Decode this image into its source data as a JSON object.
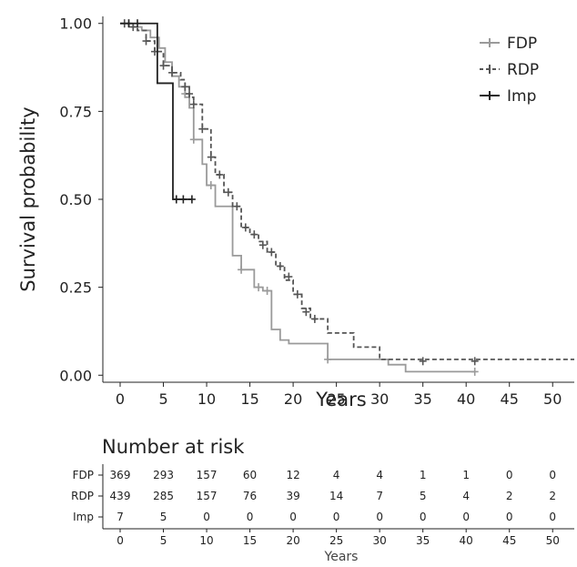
{
  "chart_data": {
    "type": "line",
    "subtype": "kaplan-meier step survival curves",
    "xlabel": "Years",
    "ylabel": "Survival probability",
    "xlim": [
      -2,
      52.5
    ],
    "ylim": [
      -0.02,
      1.02
    ],
    "x_ticks": [
      0,
      5,
      10,
      15,
      20,
      25,
      30,
      35,
      40,
      45,
      50
    ],
    "y_ticks": [
      0.0,
      0.25,
      0.5,
      0.75,
      1.0
    ],
    "y_tick_labels": [
      "0.00",
      "0.25",
      "0.50",
      "0.75",
      "1.00"
    ],
    "grid": false,
    "legend_position": "top-right",
    "series": [
      {
        "name": "FDP",
        "color": "#9a9a9a",
        "dash": "solid",
        "steps": [
          [
            0,
            1.0
          ],
          [
            1.5,
            0.99
          ],
          [
            2.5,
            0.98
          ],
          [
            3.5,
            0.96
          ],
          [
            4.5,
            0.93
          ],
          [
            5.2,
            0.89
          ],
          [
            6.0,
            0.85
          ],
          [
            6.8,
            0.82
          ],
          [
            7.5,
            0.79
          ],
          [
            8.0,
            0.76
          ],
          [
            8.5,
            0.67
          ],
          [
            9.5,
            0.6
          ],
          [
            10.0,
            0.54
          ],
          [
            11.0,
            0.48
          ],
          [
            13.0,
            0.34
          ],
          [
            14.0,
            0.3
          ],
          [
            15.5,
            0.25
          ],
          [
            16.5,
            0.24
          ],
          [
            17.5,
            0.13
          ],
          [
            18.5,
            0.1
          ],
          [
            19.5,
            0.09
          ],
          [
            24.0,
            0.045
          ],
          [
            31.0,
            0.03
          ],
          [
            33.0,
            0.01
          ],
          [
            41.0,
            0.01
          ]
        ],
        "censor_marks": [
          [
            0.5,
            1.0
          ],
          [
            1.0,
            1.0
          ],
          [
            7.5,
            0.8
          ],
          [
            8.5,
            0.67
          ],
          [
            10.5,
            0.54
          ],
          [
            14.0,
            0.3
          ],
          [
            16.0,
            0.25
          ],
          [
            17.0,
            0.24
          ],
          [
            24.0,
            0.045
          ],
          [
            41.0,
            0.01
          ]
        ]
      },
      {
        "name": "RDP",
        "color": "#555555",
        "dash": "dashed",
        "steps": [
          [
            0,
            1.0
          ],
          [
            1.0,
            0.99
          ],
          [
            2.0,
            0.98
          ],
          [
            3.0,
            0.95
          ],
          [
            4.0,
            0.92
          ],
          [
            5.0,
            0.88
          ],
          [
            6.0,
            0.86
          ],
          [
            7.0,
            0.84
          ],
          [
            7.5,
            0.82
          ],
          [
            8.0,
            0.79
          ],
          [
            8.5,
            0.77
          ],
          [
            9.5,
            0.7
          ],
          [
            10.5,
            0.62
          ],
          [
            11.0,
            0.57
          ],
          [
            12.0,
            0.52
          ],
          [
            13.0,
            0.48
          ],
          [
            14.0,
            0.42
          ],
          [
            15.0,
            0.4
          ],
          [
            16.0,
            0.38
          ],
          [
            17.0,
            0.35
          ],
          [
            18.0,
            0.31
          ],
          [
            19.0,
            0.27
          ],
          [
            20.0,
            0.23
          ],
          [
            21.0,
            0.19
          ],
          [
            22.0,
            0.16
          ],
          [
            24.0,
            0.12
          ],
          [
            27.0,
            0.08
          ],
          [
            30.0,
            0.045
          ],
          [
            52.5,
            0.045
          ]
        ],
        "censor_marks": [
          [
            0.5,
            1.0
          ],
          [
            1.5,
            0.99
          ],
          [
            3.0,
            0.95
          ],
          [
            4.0,
            0.92
          ],
          [
            5.0,
            0.88
          ],
          [
            6.0,
            0.86
          ],
          [
            7.5,
            0.82
          ],
          [
            8.0,
            0.8
          ],
          [
            8.5,
            0.77
          ],
          [
            9.5,
            0.7
          ],
          [
            10.5,
            0.62
          ],
          [
            11.5,
            0.57
          ],
          [
            12.5,
            0.52
          ],
          [
            13.5,
            0.48
          ],
          [
            14.5,
            0.42
          ],
          [
            15.5,
            0.4
          ],
          [
            16.5,
            0.37
          ],
          [
            17.5,
            0.35
          ],
          [
            18.5,
            0.31
          ],
          [
            19.5,
            0.28
          ],
          [
            20.5,
            0.23
          ],
          [
            21.5,
            0.18
          ],
          [
            22.5,
            0.16
          ],
          [
            35.0,
            0.04
          ],
          [
            41.0,
            0.04
          ]
        ]
      },
      {
        "name": "Imp",
        "color": "#222222",
        "dash": "solid",
        "steps": [
          [
            0,
            1.0
          ],
          [
            4.3,
            1.0
          ],
          [
            4.3,
            0.83
          ],
          [
            6.1,
            0.83
          ],
          [
            6.1,
            0.5
          ],
          [
            8.3,
            0.5
          ]
        ],
        "censor_marks": [
          [
            1.0,
            1.0
          ],
          [
            2.0,
            1.0
          ],
          [
            6.5,
            0.5
          ],
          [
            7.3,
            0.5
          ],
          [
            8.3,
            0.5
          ]
        ]
      }
    ]
  },
  "risk_table": {
    "title": "Number at risk",
    "xlabel": "Years",
    "times": [
      0,
      5,
      10,
      15,
      20,
      25,
      30,
      35,
      40,
      45,
      50
    ],
    "rows": [
      {
        "label": "FDP",
        "values": [
          "369",
          "293",
          "157",
          "60",
          "12",
          "4",
          "4",
          "1",
          "1",
          "0",
          "0"
        ]
      },
      {
        "label": "RDP",
        "values": [
          "439",
          "285",
          "157",
          "76",
          "39",
          "14",
          "7",
          "5",
          "4",
          "2",
          "2"
        ]
      },
      {
        "label": "Imp",
        "values": [
          "7",
          "5",
          "0",
          "0",
          "0",
          "0",
          "0",
          "0",
          "0",
          "0",
          "0"
        ]
      }
    ]
  }
}
